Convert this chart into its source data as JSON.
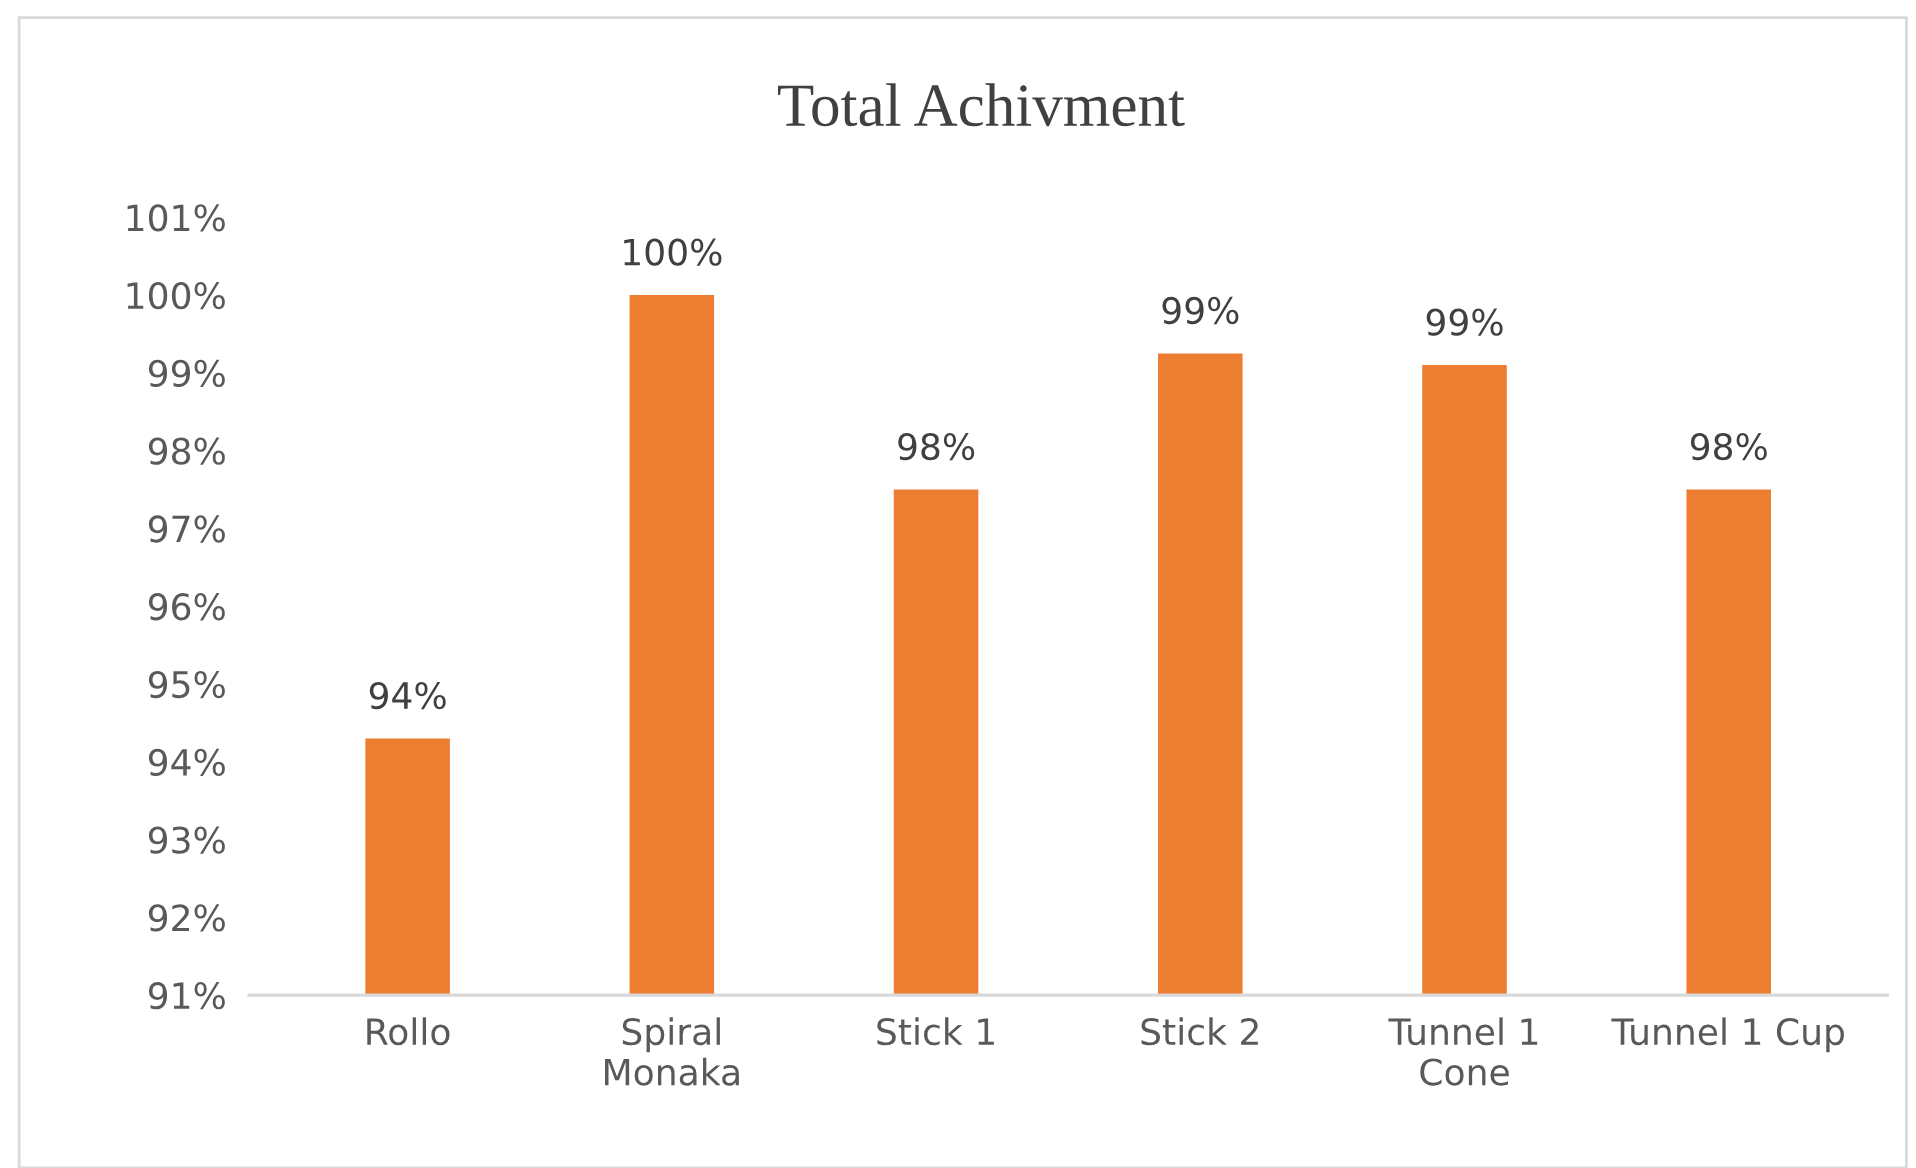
{
  "chart_data": {
    "type": "bar",
    "title": "Total Achivment",
    "categories": [
      "Rollo",
      "Spiral\nMonaka",
      "Stick 1",
      "Stick 2",
      "Tunnel 1\nCone",
      "Tunnel 1 Cup"
    ],
    "values": [
      94.3,
      100.0,
      97.5,
      99.25,
      99.1,
      97.5
    ],
    "value_labels": [
      "94%",
      "100%",
      "98%",
      "99%",
      "99%",
      "98%"
    ],
    "color": "#ed7d31",
    "ylim": [
      91,
      101
    ],
    "yticks": [
      {
        "value": 91,
        "label": "91%"
      },
      {
        "value": 92,
        "label": "92%"
      },
      {
        "value": 93,
        "label": "93%"
      },
      {
        "value": 94,
        "label": "94%"
      },
      {
        "value": 95,
        "label": "95%"
      },
      {
        "value": 96,
        "label": "96%"
      },
      {
        "value": 97,
        "label": "97%"
      },
      {
        "value": 98,
        "label": "98%"
      },
      {
        "value": 99,
        "label": "99%"
      },
      {
        "value": 100,
        "label": "100%"
      },
      {
        "value": 101,
        "label": "101%"
      }
    ],
    "grid": false
  }
}
